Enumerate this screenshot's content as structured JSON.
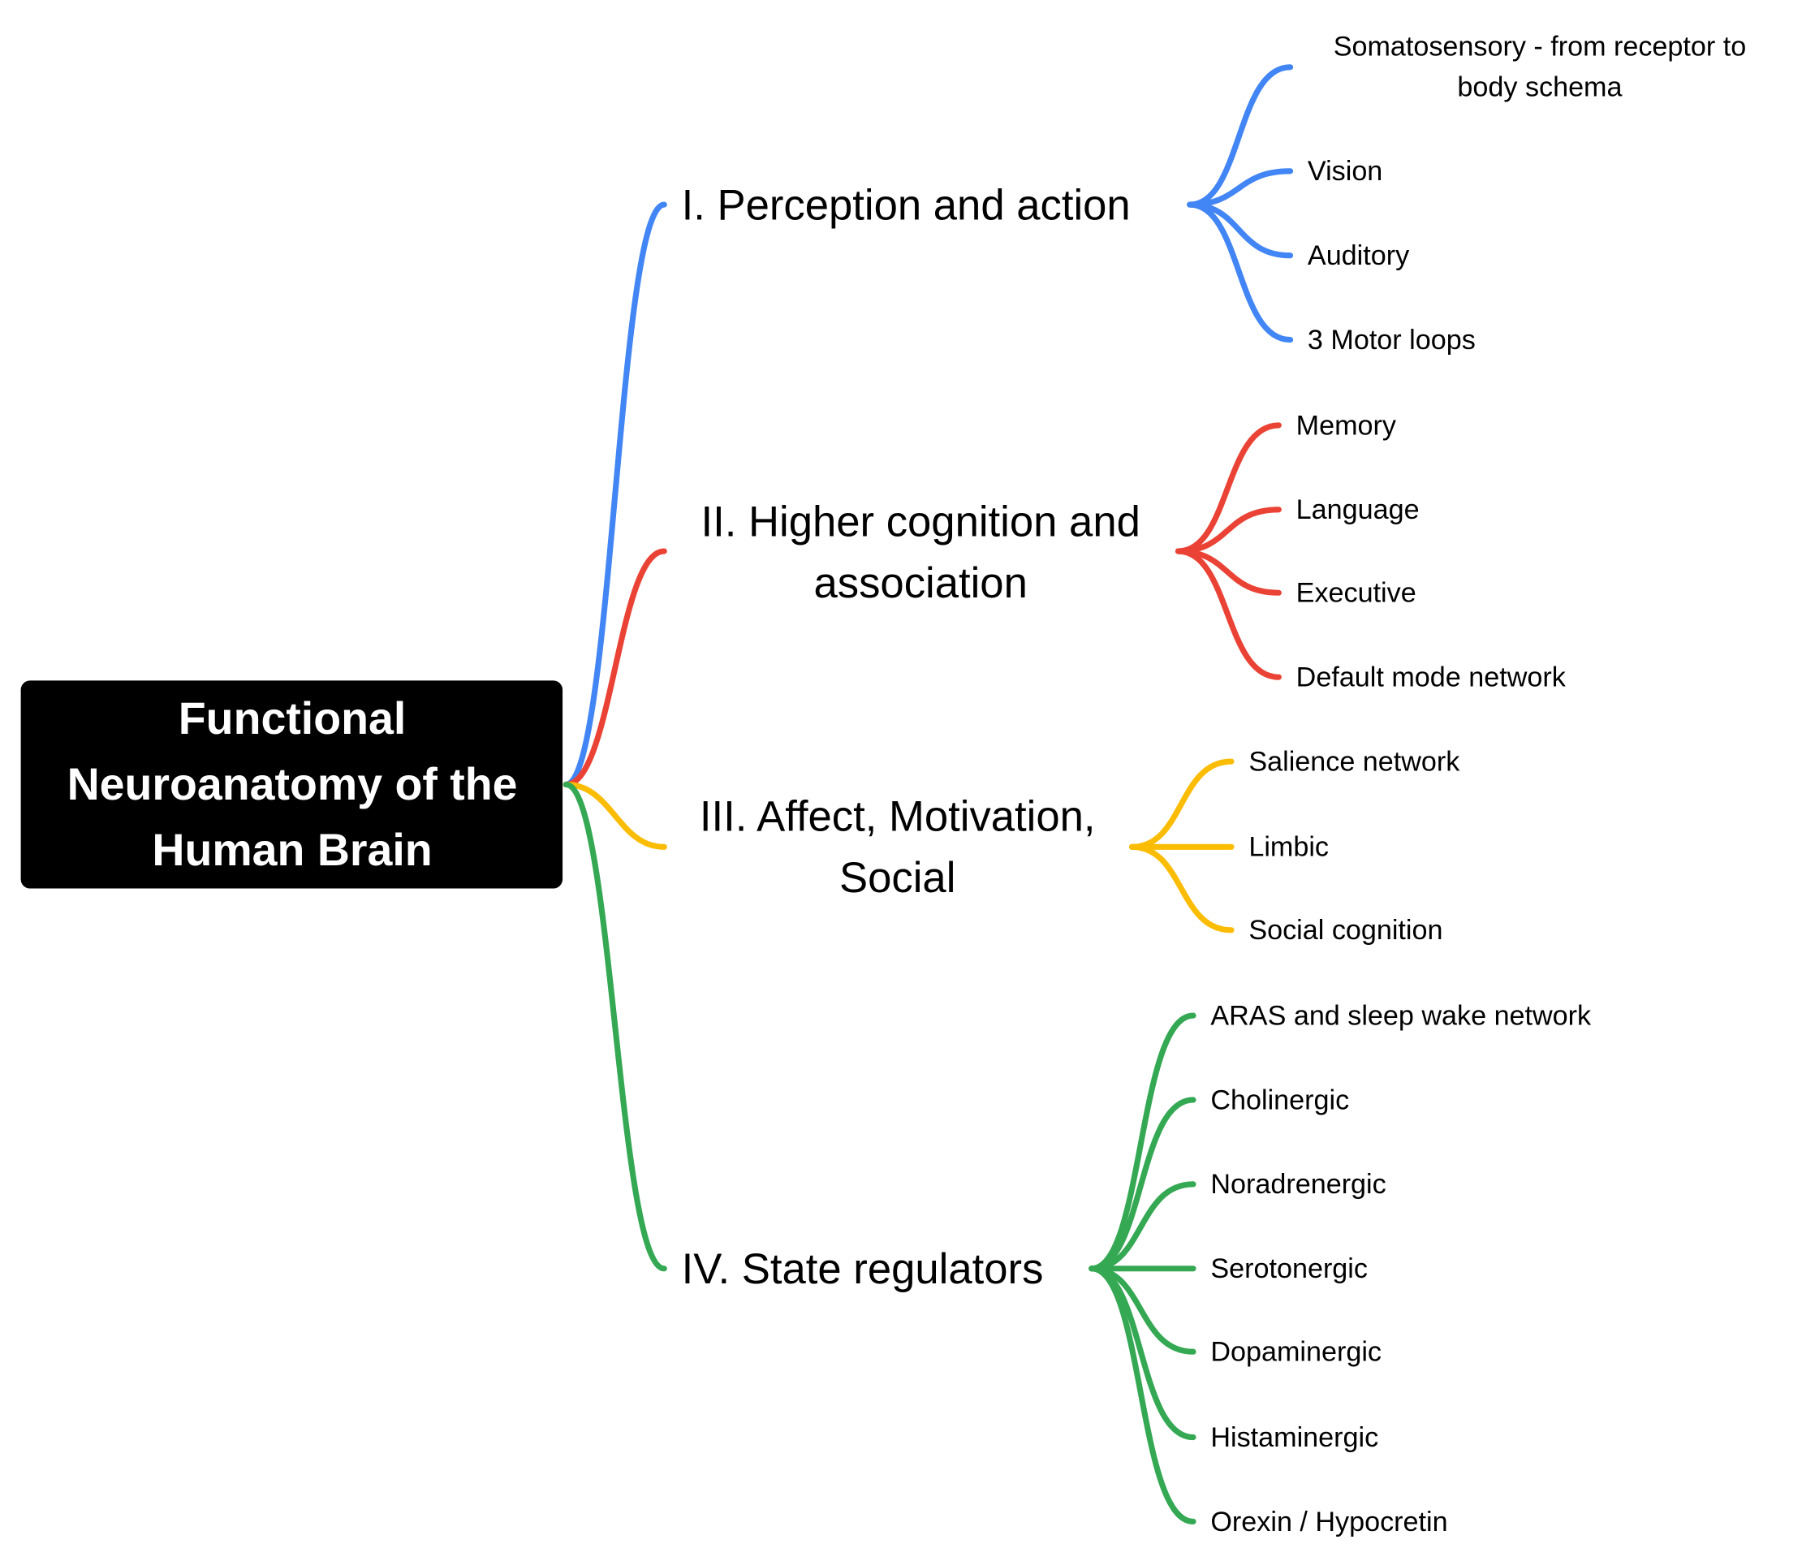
{
  "root": {
    "lines": [
      "Functional",
      "Neuroanatomy of the",
      "Human Brain"
    ]
  },
  "branches": [
    {
      "lines": [
        "I. Perception and action"
      ],
      "color": "#4285F4",
      "children": [
        {
          "lines": [
            "Somatosensory - from receptor to",
            "body schema"
          ]
        },
        {
          "lines": [
            "Vision"
          ]
        },
        {
          "lines": [
            "Auditory"
          ]
        },
        {
          "lines": [
            "3 Motor loops"
          ]
        }
      ]
    },
    {
      "lines": [
        "II. Higher cognition and",
        "association"
      ],
      "color": "#EA4335",
      "children": [
        {
          "lines": [
            "Memory"
          ]
        },
        {
          "lines": [
            "Language"
          ]
        },
        {
          "lines": [
            "Executive"
          ]
        },
        {
          "lines": [
            "Default mode network"
          ]
        }
      ]
    },
    {
      "lines": [
        "III. Affect, Motivation,",
        "Social"
      ],
      "color": "#FBBC04",
      "children": [
        {
          "lines": [
            "Salience network"
          ]
        },
        {
          "lines": [
            "Limbic"
          ]
        },
        {
          "lines": [
            "Social cognition"
          ]
        }
      ]
    },
    {
      "lines": [
        "IV. State regulators"
      ],
      "color": "#34A853",
      "children": [
        {
          "lines": [
            "ARAS and sleep wake network"
          ]
        },
        {
          "lines": [
            "Cholinergic"
          ]
        },
        {
          "lines": [
            "Noradrenergic"
          ]
        },
        {
          "lines": [
            "Serotonergic"
          ]
        },
        {
          "lines": [
            "Dopaminergic"
          ]
        },
        {
          "lines": [
            "Histaminergic"
          ]
        },
        {
          "lines": [
            "Orexin / Hypocretin"
          ]
        }
      ]
    }
  ]
}
